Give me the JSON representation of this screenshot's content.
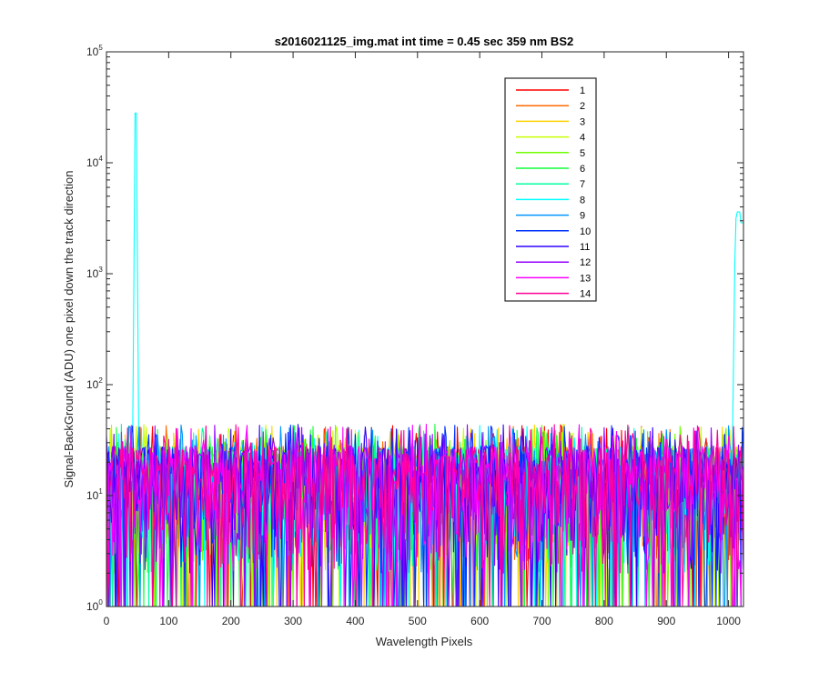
{
  "chart_data": {
    "type": "line",
    "title": "s2016021125_img.mat int time = 0.45 sec  359 nm BS2",
    "xlabel": "Wavelength Pixels",
    "ylabel": "Signal-BackGround (ADU) one pixel down the track direction",
    "xlim": [
      0,
      1024
    ],
    "ylim": [
      1,
      100000
    ],
    "yscale": "log",
    "xticks": [
      "0",
      "100",
      "200",
      "300",
      "400",
      "500",
      "600",
      "700",
      "800",
      "900",
      "1000"
    ],
    "yticks": [
      {
        "base": "10",
        "exp": "0"
      },
      {
        "base": "10",
        "exp": "1"
      },
      {
        "base": "10",
        "exp": "2"
      },
      {
        "base": "10",
        "exp": "3"
      },
      {
        "base": "10",
        "exp": "4"
      },
      {
        "base": "10",
        "exp": "5"
      }
    ],
    "grid": false,
    "legend_position": "top-right",
    "noise_floor": {
      "typical_range": [
        2,
        35
      ],
      "max_spikes": 45
    },
    "peaks": [
      {
        "series": "8",
        "x": 47,
        "y": 44000
      },
      {
        "series": "8",
        "x": 1013,
        "y": 3600
      }
    ],
    "series": [
      {
        "name": "1",
        "color": "#ff0000"
      },
      {
        "name": "2",
        "color": "#ff6a00"
      },
      {
        "name": "3",
        "color": "#ffd200"
      },
      {
        "name": "4",
        "color": "#c8ff00"
      },
      {
        "name": "5",
        "color": "#6eff00"
      },
      {
        "name": "6",
        "color": "#14ff3c"
      },
      {
        "name": "7",
        "color": "#00ffa0"
      },
      {
        "name": "8",
        "color": "#00ffff"
      },
      {
        "name": "9",
        "color": "#0096ff"
      },
      {
        "name": "10",
        "color": "#0032ff"
      },
      {
        "name": "11",
        "color": "#3200ff"
      },
      {
        "name": "12",
        "color": "#9600ff"
      },
      {
        "name": "13",
        "color": "#fa00ff"
      },
      {
        "name": "14",
        "color": "#ff0096"
      }
    ]
  }
}
